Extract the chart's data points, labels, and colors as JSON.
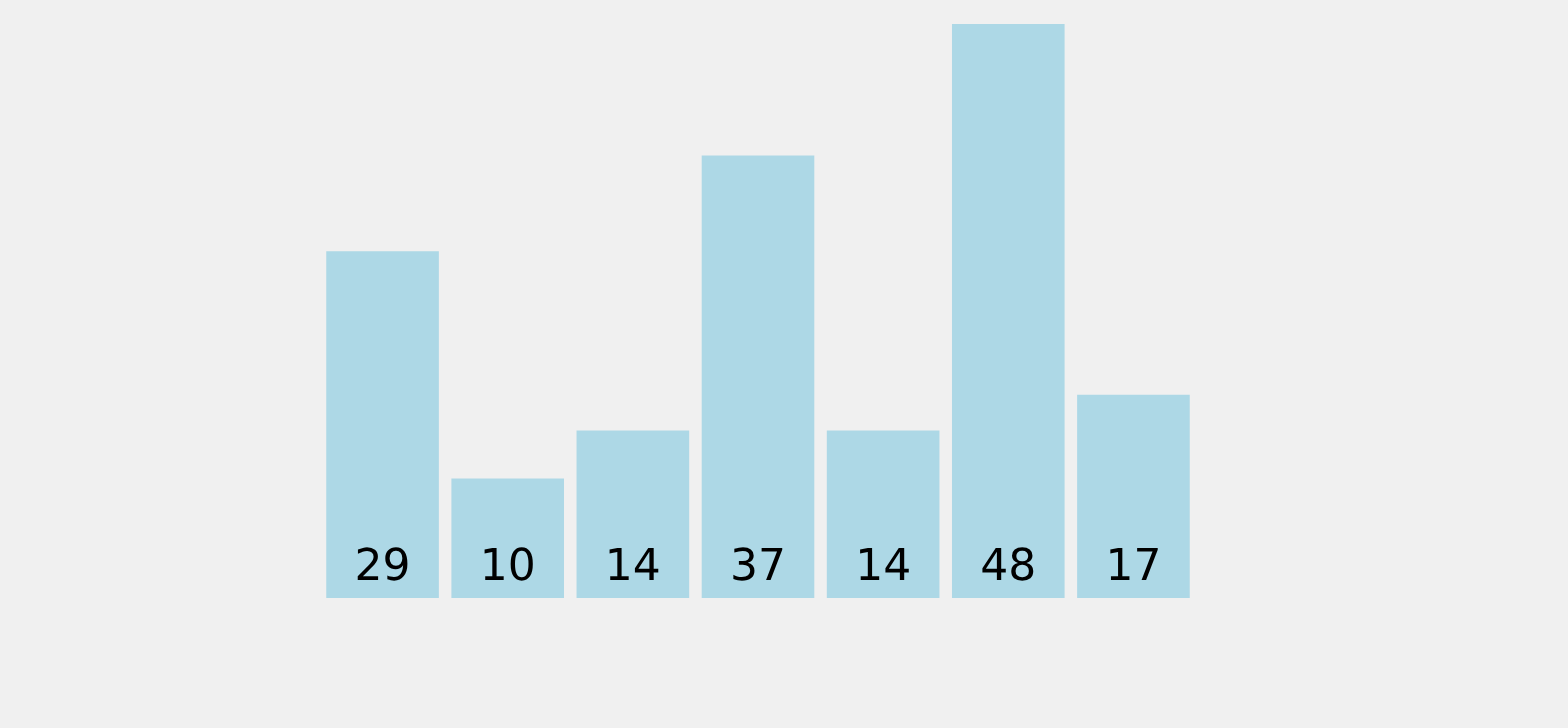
{
  "chart_data": {
    "type": "bar",
    "categories": [
      null,
      null,
      null,
      null,
      null,
      null,
      null
    ],
    "values": [
      29,
      10,
      14,
      37,
      14,
      48,
      17
    ],
    "color": "#add8e6",
    "data_labels": true
  }
}
